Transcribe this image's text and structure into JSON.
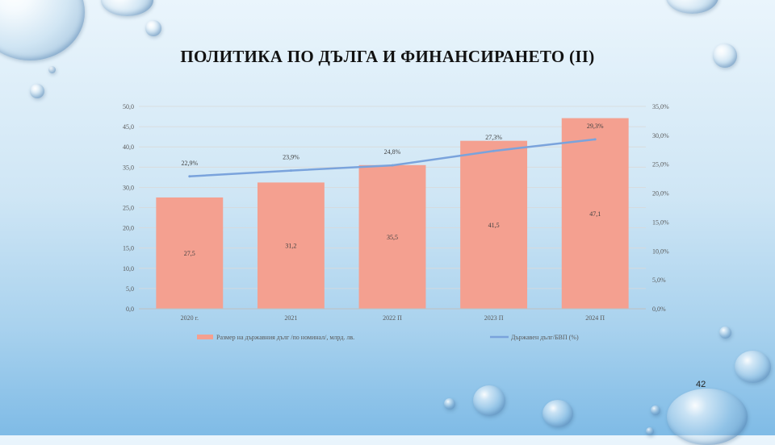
{
  "slide": {
    "title": "ПОЛИТИКА ПО ДЪЛГА И ФИНАНСИРАНЕТО (II)",
    "page_number": "42"
  },
  "colors": {
    "bar": "#f4a090",
    "line": "#7aa3dc",
    "axis_text": "#595959",
    "grid": "#d9d9d9"
  },
  "chart_data": {
    "type": "bar",
    "title": "",
    "categories": [
      "2020 г.",
      "2021",
      "2022 П",
      "2023 П",
      "2024 П"
    ],
    "y_left": {
      "range": [
        0,
        50
      ],
      "ticks": [
        "0,0",
        "5,0",
        "10,0",
        "15,0",
        "20,0",
        "25,0",
        "30,0",
        "35,0",
        "40,0",
        "45,0",
        "50,0"
      ]
    },
    "y_right": {
      "range": [
        0,
        35
      ],
      "ticks": [
        "0,0%",
        "5,0%",
        "10,0%",
        "15,0%",
        "20,0%",
        "25,0%",
        "30,0%",
        "35,0%"
      ]
    },
    "grid": true,
    "legend_position": "bottom",
    "series": [
      {
        "name": "Размер на държавния дълг /по номинал/, млрд. лв.",
        "type": "bar",
        "axis": "left",
        "values": [
          27.5,
          31.2,
          35.5,
          41.5,
          47.1
        ],
        "labels": [
          "27,5",
          "31,2",
          "35,5",
          "41,5",
          "47,1"
        ]
      },
      {
        "name": "Държавен дълг/БВП (%)",
        "type": "line",
        "axis": "right",
        "values": [
          22.9,
          23.9,
          24.8,
          27.3,
          29.3
        ],
        "labels": [
          "22,9%",
          "23,9%",
          "24,8%",
          "27,3%",
          "29,3%"
        ]
      }
    ]
  }
}
